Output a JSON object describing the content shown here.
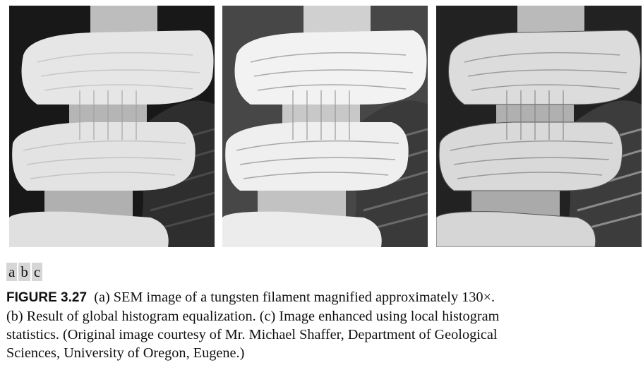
{
  "panels": [
    {
      "label": "a",
      "variant": "original"
    },
    {
      "label": "b",
      "variant": "global-equalized"
    },
    {
      "label": "c",
      "variant": "local-enhanced"
    }
  ],
  "caption": {
    "head": "FIGURE 3.27",
    "lines": [
      "(a) SEM image of a tungsten filament magnified approximately 130×.",
      "(b) Result of global histogram equalization. (c) Image enhanced using local histogram",
      "statistics. (Original image courtesy of Mr. Michael Shaffer, Department of Geological",
      "Sciences, University of Oregon, Eugene.)"
    ]
  },
  "colors": {
    "background": "#1a1a1a",
    "panel_b_background": "#474747",
    "coil_a": "#e6e6e6",
    "coil_b": "#f2f2f2",
    "coil_c": "#dcdcdc"
  }
}
